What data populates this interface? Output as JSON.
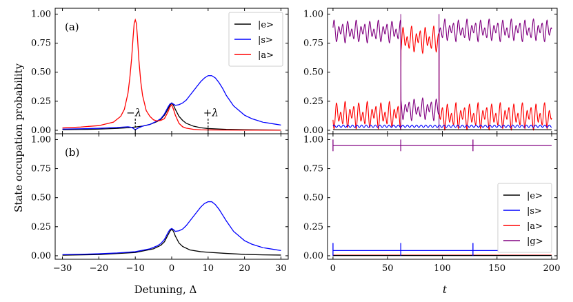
{
  "figure": {
    "ylabel": "State occupation probability",
    "xlabel_left": "Detuning, Δ",
    "xlabel_right": "t"
  },
  "colors": {
    "e": "#000000",
    "s": "#0000ff",
    "a": "#ff0000",
    "g": "#800080"
  },
  "chart_data": [
    {
      "id": "a-left",
      "type": "line",
      "panel_label": "(a)",
      "xlim": [
        -32,
        32
      ],
      "ylim": [
        -0.03,
        1.05
      ],
      "xticks": [
        -30,
        -20,
        -10,
        0,
        10,
        20,
        30
      ],
      "yticks": [
        "0.00",
        "0.25",
        "0.50",
        "0.75",
        "1.00"
      ],
      "annotations": [
        {
          "text": "−λ",
          "x": -10
        },
        {
          "text": "+λ",
          "x": 10
        }
      ],
      "legend": [
        "|e>",
        "|s>",
        "|a>"
      ],
      "series": [
        {
          "name": "|e>",
          "color_key": "e",
          "x": [
            -30,
            -25,
            -20,
            -15,
            -12,
            -10,
            -8,
            -6,
            -4,
            -3,
            -2,
            -1.5,
            -1,
            -0.5,
            0,
            0.5,
            1,
            1.5,
            2,
            3,
            4,
            6,
            8,
            10,
            15,
            20,
            25,
            30
          ],
          "y": [
            0.005,
            0.007,
            0.01,
            0.016,
            0.022,
            0.028,
            0.036,
            0.05,
            0.075,
            0.095,
            0.13,
            0.155,
            0.185,
            0.215,
            0.235,
            0.215,
            0.18,
            0.15,
            0.12,
            0.085,
            0.06,
            0.035,
            0.022,
            0.015,
            0.008,
            0.005,
            0.003,
            0.002
          ]
        },
        {
          "name": "|s>",
          "color_key": "s",
          "x": [
            -30,
            -25,
            -20,
            -15,
            -12,
            -11,
            -10,
            -9,
            -8,
            -6,
            -4,
            -3,
            -2,
            -1,
            -0.5,
            0,
            0.5,
            1,
            2,
            3,
            4,
            5,
            6,
            7,
            8,
            9,
            10,
            11,
            12,
            13,
            14,
            15,
            17,
            20,
            22,
            25,
            28,
            30
          ],
          "y": [
            0.01,
            0.013,
            0.017,
            0.024,
            0.03,
            0.025,
            0.005,
            0.022,
            0.035,
            0.05,
            0.08,
            0.1,
            0.14,
            0.2,
            0.225,
            0.235,
            0.225,
            0.215,
            0.22,
            0.235,
            0.26,
            0.3,
            0.34,
            0.38,
            0.42,
            0.45,
            0.47,
            0.47,
            0.45,
            0.41,
            0.36,
            0.3,
            0.21,
            0.13,
            0.1,
            0.07,
            0.055,
            0.045
          ]
        },
        {
          "name": "|a>",
          "color_key": "a",
          "x": [
            -30,
            -25,
            -20,
            -16,
            -14,
            -13,
            -12,
            -11.5,
            -11,
            -10.6,
            -10.3,
            -10,
            -9.7,
            -9.4,
            -9,
            -8.5,
            -8,
            -7,
            -6,
            -5,
            -4,
            -3,
            -2,
            -1,
            -0.5,
            0,
            0.5,
            1,
            2,
            3,
            4,
            6,
            8,
            10,
            15,
            20,
            25,
            30
          ],
          "y": [
            0.02,
            0.028,
            0.04,
            0.07,
            0.12,
            0.18,
            0.32,
            0.45,
            0.62,
            0.8,
            0.92,
            0.95,
            0.92,
            0.8,
            0.6,
            0.42,
            0.3,
            0.17,
            0.12,
            0.09,
            0.08,
            0.085,
            0.1,
            0.16,
            0.2,
            0.22,
            0.18,
            0.13,
            0.06,
            0.03,
            0.018,
            0.008,
            0.004,
            0.003,
            0.002,
            0.001,
            0.001,
            0.001
          ]
        }
      ]
    },
    {
      "id": "a-right",
      "type": "line",
      "xlim": [
        -5,
        205
      ],
      "ylim": [
        -0.03,
        1.05
      ],
      "xticks": [
        0,
        50,
        100,
        150,
        200
      ],
      "yticks": [
        "0.00",
        "0.25",
        "0.50",
        "0.75",
        "1.00"
      ],
      "series": [
        {
          "name": "|g>",
          "color_key": "g",
          "mean": 0.85,
          "amp": 0.1,
          "segments": [
            [
              0,
              62,
              0.85
            ],
            [
              62,
              97,
              0.18
            ],
            [
              97,
              200,
              0.86
            ]
          ],
          "dips": [
            62,
            97
          ]
        },
        {
          "name": "|a>",
          "color_key": "a",
          "mean": 0.12,
          "amp": 0.12,
          "segments": [
            [
              0,
              62,
              0.13
            ],
            [
              62,
              97,
              0.78
            ],
            [
              97,
              200,
              0.12
            ]
          ]
        },
        {
          "name": "|s>",
          "color_key": "s",
          "level": 0.035
        },
        {
          "name": "|e>",
          "color_key": "e",
          "level": 0.005
        }
      ]
    },
    {
      "id": "b-left",
      "type": "line",
      "panel_label": "(b)",
      "xlim": [
        -32,
        32
      ],
      "ylim": [
        -0.03,
        1.05
      ],
      "xticks": [
        -30,
        -20,
        -10,
        0,
        10,
        20,
        30
      ],
      "yticks": [
        "0.00",
        "0.25",
        "0.50",
        "0.75",
        "1.00"
      ],
      "series": [
        {
          "name": "|e>",
          "color_key": "e",
          "x": [
            -30,
            -20,
            -10,
            -5,
            -3,
            -2,
            -1,
            -0.5,
            0,
            0.5,
            1,
            2,
            3,
            5,
            8,
            10,
            15,
            20,
            25,
            30
          ],
          "y": [
            0.005,
            0.01,
            0.028,
            0.06,
            0.09,
            0.12,
            0.18,
            0.21,
            0.23,
            0.21,
            0.17,
            0.11,
            0.08,
            0.05,
            0.035,
            0.03,
            0.02,
            0.012,
            0.008,
            0.006
          ]
        },
        {
          "name": "|s>",
          "color_key": "s",
          "x": [
            -30,
            -25,
            -20,
            -15,
            -10,
            -6,
            -4,
            -3,
            -2,
            -1,
            -0.5,
            0,
            0.5,
            1,
            2,
            3,
            4,
            5,
            6,
            7,
            8,
            9,
            10,
            11,
            12,
            13,
            14,
            15,
            17,
            20,
            22,
            25,
            28,
            30
          ],
          "y": [
            0.01,
            0.013,
            0.017,
            0.024,
            0.035,
            0.06,
            0.085,
            0.105,
            0.14,
            0.2,
            0.225,
            0.235,
            0.225,
            0.21,
            0.215,
            0.23,
            0.26,
            0.3,
            0.34,
            0.38,
            0.42,
            0.45,
            0.465,
            0.465,
            0.44,
            0.4,
            0.35,
            0.3,
            0.21,
            0.13,
            0.1,
            0.07,
            0.055,
            0.045
          ]
        }
      ]
    },
    {
      "id": "b-right",
      "type": "line",
      "xlim": [
        -5,
        205
      ],
      "ylim": [
        -0.03,
        1.05
      ],
      "xticks": [
        0,
        50,
        100,
        150,
        200
      ],
      "yticks": [
        "0.00",
        "0.25",
        "0.50",
        "0.75",
        "1.00"
      ],
      "legend": [
        "|e>",
        "|s>",
        "|a>",
        "|g>"
      ],
      "series": [
        {
          "name": "|g>",
          "color_key": "g",
          "level": 0.95
        },
        {
          "name": "|s>",
          "color_key": "s",
          "level": 0.045
        },
        {
          "name": "|a>",
          "color_key": "a",
          "level": 0.005
        },
        {
          "name": "|e>",
          "color_key": "e",
          "level": 0.002
        }
      ],
      "spikes": [
        0,
        62,
        128
      ]
    }
  ]
}
